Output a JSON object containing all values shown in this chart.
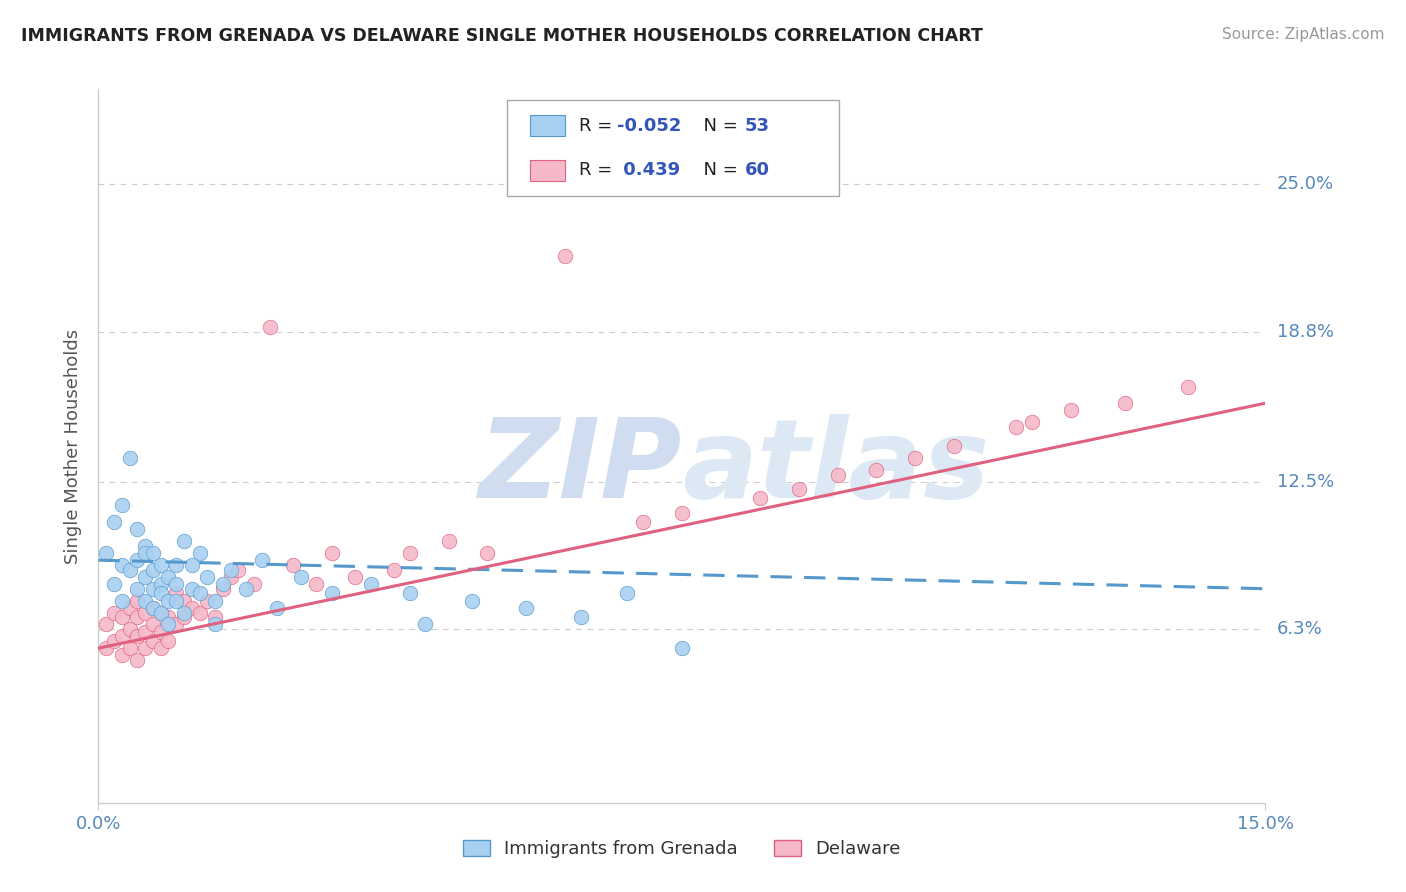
{
  "title": "IMMIGRANTS FROM GRENADA VS DELAWARE SINGLE MOTHER HOUSEHOLDS CORRELATION CHART",
  "source": "Source: ZipAtlas.com",
  "ylabel": "Single Mother Households",
  "legend_label1": "Immigrants from Grenada",
  "legend_label2": "Delaware",
  "legend_r1": "-0.052",
  "legend_n1": "53",
  "legend_r2": "0.439",
  "legend_n2": "60",
  "xlim": [
    0.0,
    0.15
  ],
  "ylim": [
    -0.01,
    0.29
  ],
  "yticks": [
    0.063,
    0.125,
    0.188,
    0.25
  ],
  "ytick_labels": [
    "6.3%",
    "12.5%",
    "18.8%",
    "25.0%"
  ],
  "color_blue": "#a8d0f0",
  "color_pink": "#f5b8c8",
  "line_color_blue": "#5599cc",
  "line_color_pink": "#e06080",
  "background": "#ffffff",
  "watermark": "ZIPatlas",
  "watermark_color": "#c8d8f0",
  "grid_color": "#cccccc",
  "axis_color": "#cccccc",
  "tick_label_color": "#5588bb",
  "blue_scatter_x": [
    0.001,
    0.002,
    0.002,
    0.003,
    0.003,
    0.003,
    0.004,
    0.004,
    0.005,
    0.005,
    0.005,
    0.006,
    0.006,
    0.006,
    0.006,
    0.007,
    0.007,
    0.007,
    0.007,
    0.008,
    0.008,
    0.008,
    0.008,
    0.009,
    0.009,
    0.009,
    0.01,
    0.01,
    0.01,
    0.011,
    0.011,
    0.012,
    0.012,
    0.013,
    0.013,
    0.014,
    0.015,
    0.015,
    0.016,
    0.017,
    0.019,
    0.021,
    0.023,
    0.026,
    0.03,
    0.035,
    0.04,
    0.042,
    0.048,
    0.055,
    0.062,
    0.068,
    0.075
  ],
  "blue_scatter_y": [
    0.095,
    0.108,
    0.082,
    0.115,
    0.09,
    0.075,
    0.135,
    0.088,
    0.105,
    0.092,
    0.08,
    0.098,
    0.085,
    0.095,
    0.075,
    0.088,
    0.08,
    0.095,
    0.072,
    0.082,
    0.09,
    0.078,
    0.07,
    0.085,
    0.075,
    0.065,
    0.082,
    0.09,
    0.075,
    0.1,
    0.07,
    0.08,
    0.09,
    0.095,
    0.078,
    0.085,
    0.075,
    0.065,
    0.082,
    0.088,
    0.08,
    0.092,
    0.072,
    0.085,
    0.078,
    0.082,
    0.078,
    0.065,
    0.075,
    0.072,
    0.068,
    0.078,
    0.055
  ],
  "pink_scatter_x": [
    0.001,
    0.001,
    0.002,
    0.002,
    0.003,
    0.003,
    0.003,
    0.004,
    0.004,
    0.004,
    0.005,
    0.005,
    0.005,
    0.005,
    0.006,
    0.006,
    0.006,
    0.007,
    0.007,
    0.007,
    0.008,
    0.008,
    0.008,
    0.009,
    0.009,
    0.01,
    0.01,
    0.011,
    0.011,
    0.012,
    0.013,
    0.014,
    0.015,
    0.016,
    0.017,
    0.018,
    0.02,
    0.022,
    0.025,
    0.028,
    0.03,
    0.033,
    0.038,
    0.04,
    0.045,
    0.05,
    0.06,
    0.07,
    0.075,
    0.085,
    0.09,
    0.095,
    0.1,
    0.105,
    0.11,
    0.118,
    0.12,
    0.125,
    0.132,
    0.14
  ],
  "pink_scatter_y": [
    0.055,
    0.065,
    0.058,
    0.07,
    0.052,
    0.06,
    0.068,
    0.055,
    0.063,
    0.072,
    0.05,
    0.06,
    0.068,
    0.075,
    0.055,
    0.062,
    0.07,
    0.058,
    0.065,
    0.072,
    0.055,
    0.062,
    0.07,
    0.058,
    0.068,
    0.065,
    0.078,
    0.068,
    0.075,
    0.072,
    0.07,
    0.075,
    0.068,
    0.08,
    0.085,
    0.088,
    0.082,
    0.19,
    0.09,
    0.082,
    0.095,
    0.085,
    0.088,
    0.095,
    0.1,
    0.095,
    0.22,
    0.108,
    0.112,
    0.118,
    0.122,
    0.128,
    0.13,
    0.135,
    0.14,
    0.148,
    0.15,
    0.155,
    0.158,
    0.165
  ],
  "blue_line_x": [
    0.0,
    0.15
  ],
  "blue_line_y": [
    0.092,
    0.08
  ],
  "pink_line_x": [
    0.0,
    0.15
  ],
  "pink_line_y": [
    0.055,
    0.158
  ]
}
